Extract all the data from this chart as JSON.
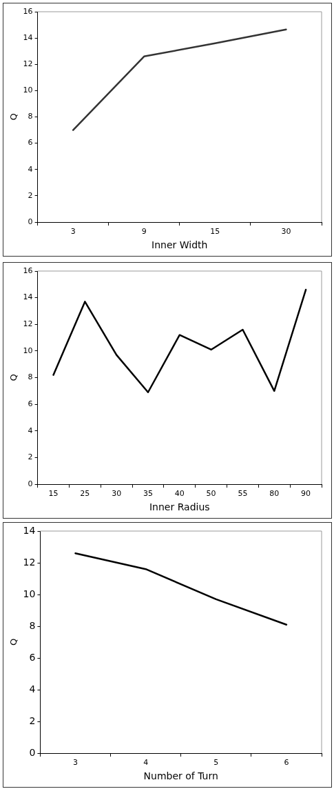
{
  "chart_data": [
    {
      "type": "line",
      "xlabel": "Inner Width",
      "ylabel": "Q",
      "categories": [
        "3",
        "9",
        "15",
        "30"
      ],
      "series": [
        {
          "color": "#333333",
          "values": [
            7.0,
            12.6,
            13.6,
            14.65
          ]
        }
      ],
      "ylim": [
        0,
        16
      ],
      "yticks": [
        0,
        2,
        4,
        6,
        8,
        10,
        12,
        14,
        16
      ],
      "grid": false,
      "legend": false,
      "marker": "none",
      "line_style": "solid"
    },
    {
      "type": "line",
      "xlabel": "Inner Radius",
      "ylabel": "Q",
      "categories": [
        "15",
        "25",
        "30",
        "35",
        "40",
        "50",
        "55",
        "80",
        "90"
      ],
      "series": [
        {
          "color": "#000000",
          "values": [
            8.2,
            13.7,
            9.7,
            6.9,
            11.2,
            10.1,
            11.6,
            7.0,
            14.6
          ]
        }
      ],
      "ylim": [
        0,
        16
      ],
      "yticks": [
        0,
        2,
        4,
        6,
        8,
        10,
        12,
        14,
        16
      ],
      "grid": false,
      "legend": false,
      "marker": "none",
      "line_style": "solid"
    },
    {
      "type": "line",
      "xlabel": "Number of Turn",
      "ylabel": "Q",
      "categories": [
        "3",
        "4",
        "5",
        "6"
      ],
      "series": [
        {
          "color": "#000000",
          "values": [
            12.6,
            11.6,
            9.7,
            8.1
          ]
        }
      ],
      "ylim": [
        0,
        14
      ],
      "yticks": [
        0,
        2,
        4,
        6,
        8,
        10,
        12,
        14
      ],
      "grid": false,
      "legend": false,
      "marker": "none",
      "line_style": "solid"
    }
  ]
}
